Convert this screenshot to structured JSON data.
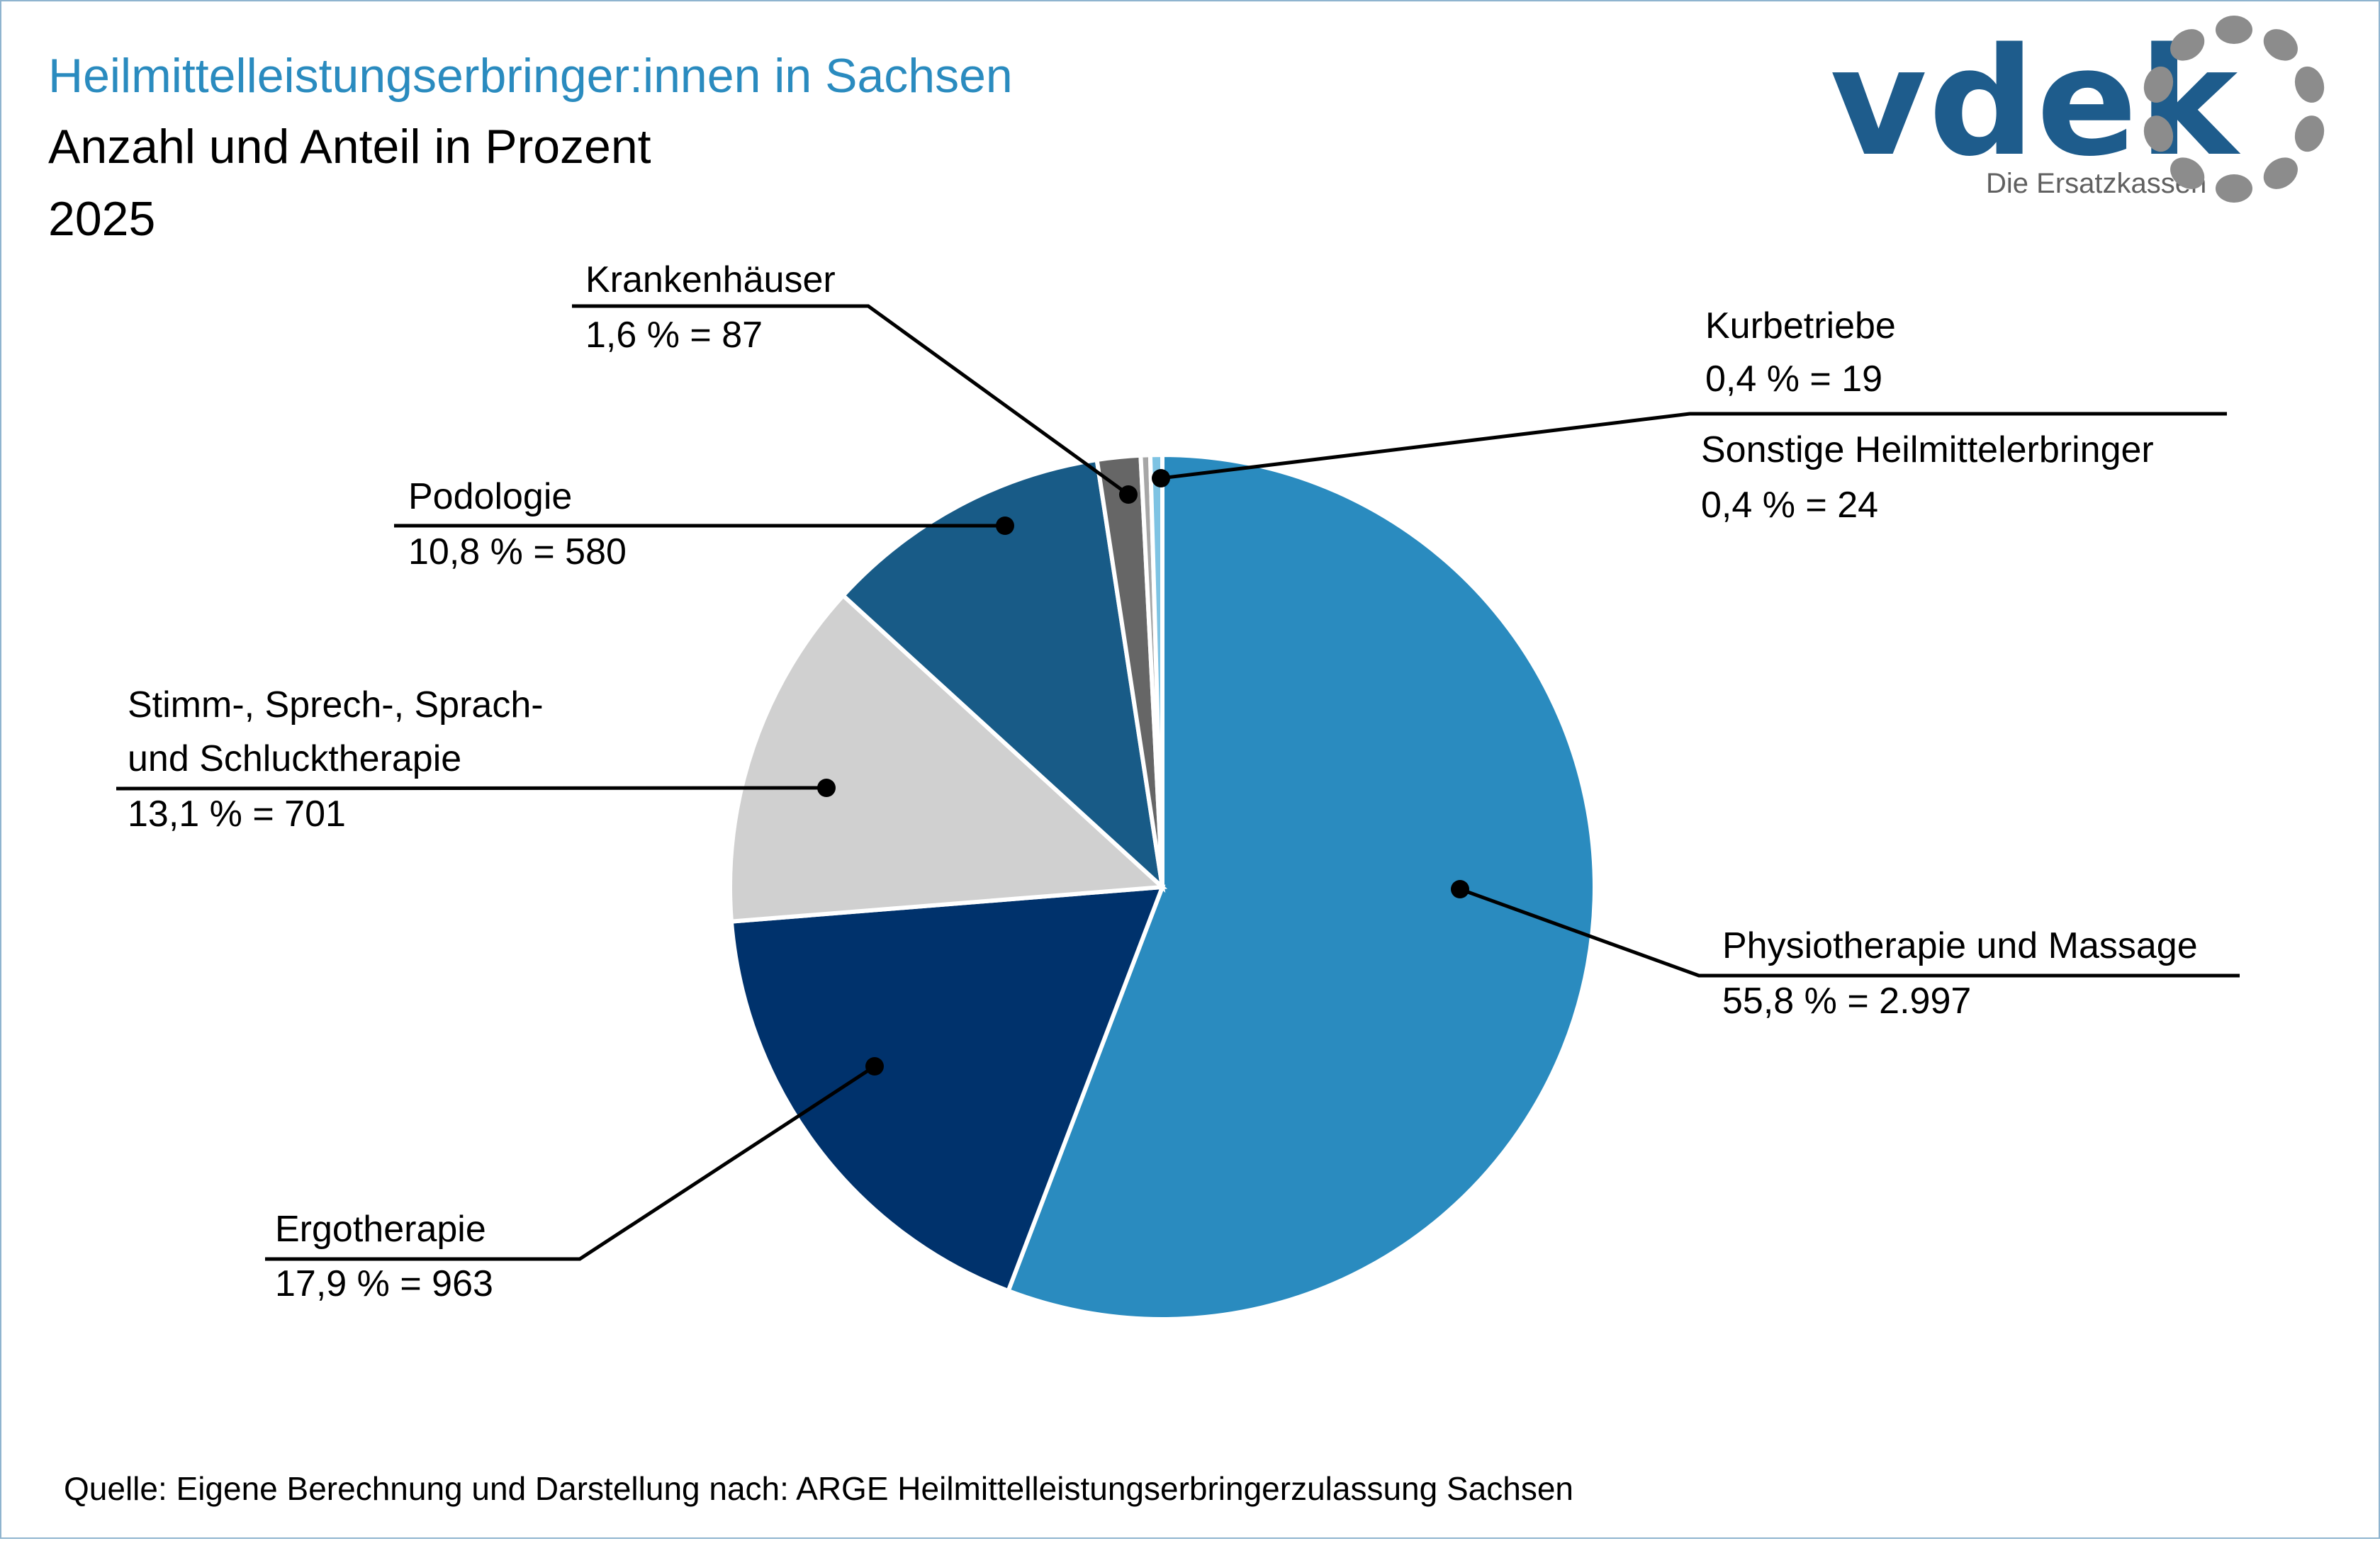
{
  "header": {
    "title": "Heilmittelleistungserbringer:innen in Sachsen",
    "subtitle": "Anzahl und Anteil in Prozent",
    "year": "2025"
  },
  "logo": {
    "word": "vdek",
    "tagline": "Die Ersatzkassen",
    "word_color": "#1e5c8c",
    "ring_color": "#8c8c8c",
    "ring_icon": "dotted-ring-icon"
  },
  "footer": {
    "source": "Quelle: Eigene Berechnung und Darstellung nach: ARGE Heilmittelleistungserbringerzulassung Sachsen"
  },
  "colors": {
    "title": "#2a8bbf",
    "text": "#000000",
    "frame": "#8fb4cf"
  },
  "chart_data": {
    "type": "pie",
    "title": "Heilmittelleistungserbringer:innen in Sachsen",
    "start_angle_deg": 0,
    "direction": "clockwise",
    "slices": [
      {
        "key": "physio",
        "label": "Physiotherapie und Massage",
        "value": 2997,
        "percent": 55.8,
        "value_text": "55,8 % = 2.997",
        "color": "#2a8bbf"
      },
      {
        "key": "ergo",
        "label": "Ergotherapie",
        "value": 963,
        "percent": 17.9,
        "value_text": "17,9 % = 963",
        "color": "#00326c"
      },
      {
        "key": "stimm",
        "label": "Stimm-, Sprech-, Sprach- und Schlucktherapie",
        "label_lines": [
          "Stimm-, Sprech-, Sprach-",
          "und Schlucktherapie"
        ],
        "value": 701,
        "percent": 13.1,
        "value_text": "13,1 % = 701",
        "color": "#d0d0d0"
      },
      {
        "key": "podo",
        "label": "Podologie",
        "value": 580,
        "percent": 10.8,
        "value_text": "10,8 % = 580",
        "color": "#185b87"
      },
      {
        "key": "kranken",
        "label": "Krankenhäuser",
        "value": 87,
        "percent": 1.6,
        "value_text": "1,6 % = 87",
        "color": "#666666"
      },
      {
        "key": "kur",
        "label": "Kurbetriebe",
        "value": 19,
        "percent": 0.4,
        "value_text": "0,4 % = 19",
        "color": "#a6a6a6"
      },
      {
        "key": "sonst",
        "label": "Sonstige Heilmittelerbringer",
        "value": 24,
        "percent": 0.4,
        "value_text": "0,4 % = 24",
        "color": "#7ec3e3"
      }
    ]
  }
}
